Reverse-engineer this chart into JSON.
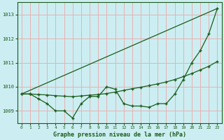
{
  "title": "Graphe pression niveau de la mer (hPa)",
  "bg_color": "#cceef2",
  "grid_color": "#e8b0b0",
  "line_color": "#1a5c1a",
  "xlim": [
    -0.5,
    23.5
  ],
  "ylim": [
    1008.5,
    1013.5
  ],
  "yticks": [
    1009,
    1010,
    1011,
    1012,
    1013
  ],
  "xticks": [
    0,
    1,
    2,
    3,
    4,
    5,
    6,
    7,
    8,
    9,
    10,
    11,
    12,
    13,
    14,
    15,
    16,
    17,
    18,
    19,
    20,
    21,
    22,
    23
  ],
  "series1_x": [
    0,
    1,
    2,
    3,
    4,
    5,
    6,
    7,
    8,
    9,
    10,
    11,
    12,
    13,
    14,
    15,
    16,
    17,
    18,
    19,
    20,
    21,
    22,
    23
  ],
  "series1_y": [
    1009.7,
    1009.7,
    1009.5,
    1009.3,
    1009.0,
    1009.0,
    1008.7,
    1009.3,
    1009.6,
    1009.6,
    1010.0,
    1009.9,
    1009.3,
    1009.2,
    1009.2,
    1009.15,
    1009.3,
    1009.3,
    1009.7,
    1010.3,
    1011.0,
    1011.5,
    1012.2,
    1013.25
  ],
  "series2_x": [
    0,
    1,
    2,
    3,
    4,
    5,
    6,
    7,
    8,
    9,
    10,
    11,
    12,
    13,
    14,
    15,
    16,
    17,
    18,
    19,
    20,
    21,
    22,
    23
  ],
  "series2_y": [
    1009.7,
    1009.7,
    1009.68,
    1009.66,
    1009.63,
    1009.61,
    1009.59,
    1009.62,
    1009.65,
    1009.68,
    1009.72,
    1009.78,
    1009.85,
    1009.92,
    1009.98,
    1010.05,
    1010.12,
    1010.2,
    1010.3,
    1010.42,
    1010.55,
    1010.7,
    1010.85,
    1011.05
  ],
  "series3_x": [
    0,
    23
  ],
  "series3_y": [
    1009.7,
    1013.25
  ]
}
